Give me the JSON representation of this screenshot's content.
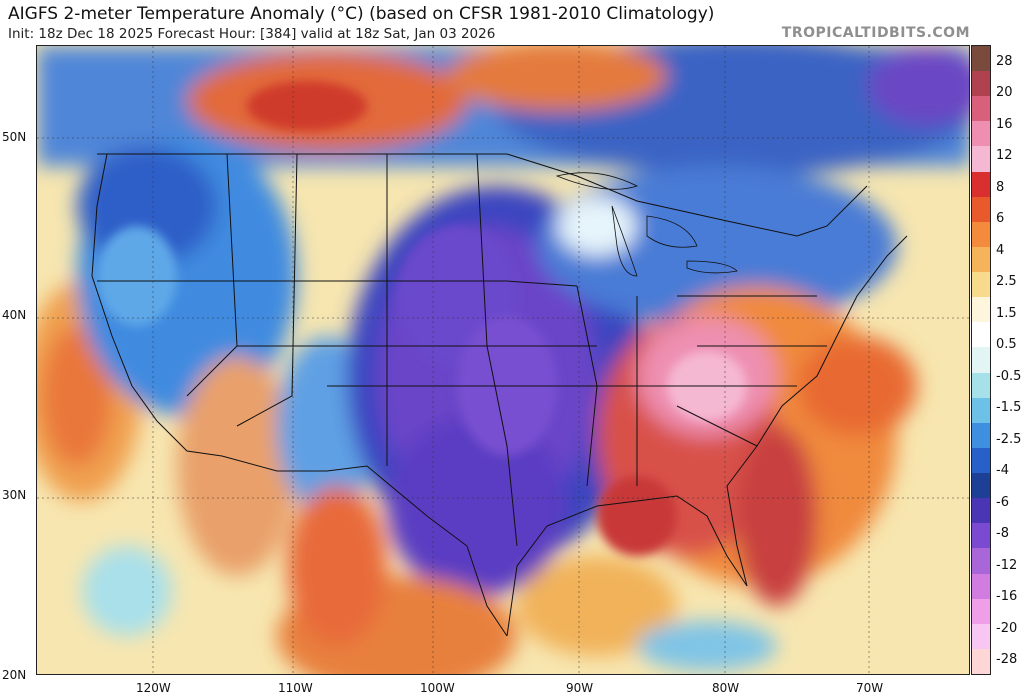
{
  "header": {
    "title": "AIGFS 2-meter Temperature Anomaly (°C) (based on CFSR 1981-2010 Climatology)",
    "subtitle": "Init: 18z Dec 18 2025   Forecast Hour: [384]   valid at 18z Sat, Jan 03 2026",
    "brand": "TROPICALTIDBITS.COM"
  },
  "map": {
    "region": "Contiguous United States",
    "lat_labels": [
      "50N",
      "40N",
      "30N",
      "20N"
    ],
    "lon_labels": [
      "120W",
      "110W",
      "100W",
      "90W",
      "80W",
      "70W"
    ]
  },
  "colorbar": {
    "labels": [
      "28",
      "20",
      "16",
      "12",
      "8",
      "6",
      "4",
      "2.5",
      "1.5",
      "0.5",
      "-0.5",
      "-1.5",
      "-2.5",
      "-4",
      "-6",
      "-8",
      "-12",
      "-16",
      "-20",
      "-28"
    ],
    "colors": [
      "#7a4a3c",
      "#b0414f",
      "#d9607a",
      "#ee8fb1",
      "#f5b8d2",
      "#d9302f",
      "#e85a2c",
      "#f38a3c",
      "#f6b45a",
      "#f8da8c",
      "#fdf6dc",
      "#ffffff",
      "#e2f4f4",
      "#a6e1ea",
      "#6dc0e6",
      "#3f8fe0",
      "#2760c8",
      "#1d3f95",
      "#4a36b5",
      "#7a4ad0",
      "#a966d8",
      "#d07ce0",
      "#ee9fe8",
      "#f8c6f2",
      "#ffd6d6"
    ]
  }
}
